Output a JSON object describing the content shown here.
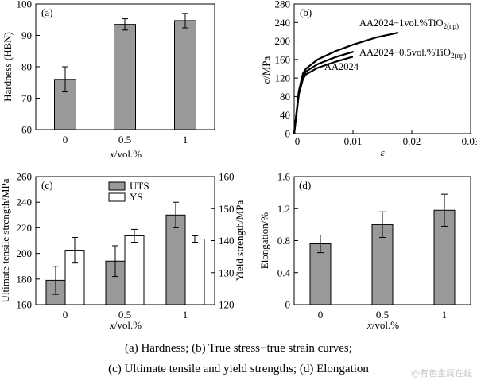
{
  "chart_data": [
    {
      "panel": "(a)",
      "type": "bar",
      "categories": [
        "0",
        "0.5",
        "1"
      ],
      "values": [
        76,
        93.5,
        94.7
      ],
      "errors": [
        4,
        1.8,
        2.3
      ],
      "ylabel": "Hardness (HBN)",
      "xlabel": "x/vol.%",
      "ylim": [
        60,
        100
      ],
      "yticks": [
        60,
        70,
        80,
        90,
        100
      ],
      "bar_color": "#999999",
      "grid": false
    },
    {
      "panel": "(b)",
      "type": "line",
      "xlabel": "ε",
      "ylabel": "σ/MPa",
      "xlim": [
        0,
        0.03
      ],
      "ylim": [
        0,
        280
      ],
      "xticks": [
        0,
        0.01,
        0.02,
        0.03
      ],
      "xtick_labels": [
        "0",
        "0.01",
        "0.02",
        "0.03"
      ],
      "yticks": [
        0,
        40,
        80,
        120,
        160,
        200,
        240,
        280
      ],
      "series": [
        {
          "name": "AA2024",
          "x": [
            0,
            0.0008,
            0.0015,
            0.002,
            0.004,
            0.007,
            0.01
          ],
          "y": [
            0,
            85,
            118,
            128,
            142,
            155,
            166
          ]
        },
        {
          "name": "AA2024−0.5vol.%TiO2(np)",
          "x": [
            0,
            0.0008,
            0.0015,
            0.002,
            0.004,
            0.007,
            0.0101
          ],
          "y": [
            0,
            88,
            123,
            134,
            150,
            165,
            177
          ]
        },
        {
          "name": "AA2024−1vol.%TiO2(np)",
          "x": [
            0,
            0.0008,
            0.0015,
            0.002,
            0.004,
            0.007,
            0.01,
            0.014,
            0.0177
          ],
          "y": [
            0,
            92,
            130,
            140,
            160,
            178,
            192,
            208,
            218
          ]
        }
      ],
      "annotations": [
        {
          "text": "AA2024−1vol.%TiO",
          "sub": "2(np)"
        },
        {
          "text": "AA2024−0.5vol.%TiO",
          "sub": "2(np)"
        },
        {
          "text": "AA2024",
          "sub": ""
        }
      ],
      "grid": false
    },
    {
      "panel": "(c)",
      "type": "bar",
      "categories": [
        "0",
        "0.5",
        "1"
      ],
      "series": [
        {
          "name": "UTS",
          "axis": "left",
          "values": [
            179,
            194,
            230
          ],
          "errors": [
            11,
            12,
            10
          ],
          "color": "#999999"
        },
        {
          "name": "YS",
          "axis": "right",
          "values": [
            137,
            141.5,
            140.5
          ],
          "errors": [
            4,
            2,
            1
          ],
          "color": "#ffffff"
        }
      ],
      "xlabel": "x/vol.%",
      "ylabel": "Ultimate tensile strength/MPa",
      "ylabel_right": "Yield strength/MPa",
      "ylim": [
        160,
        260
      ],
      "ylim_right": [
        120,
        160
      ],
      "yticks": [
        160,
        180,
        200,
        220,
        240,
        260
      ],
      "yticks_right": [
        120,
        130,
        140,
        150,
        160
      ],
      "legend": "top-left",
      "grid": false
    },
    {
      "panel": "(d)",
      "type": "bar",
      "categories": [
        "0",
        "0.5",
        "1"
      ],
      "values": [
        0.76,
        1.0,
        1.18
      ],
      "errors": [
        0.11,
        0.16,
        0.2
      ],
      "xlabel": "x/vol.%",
      "ylabel": "Elongation/%",
      "ylim": [
        0,
        1.6
      ],
      "yticks": [
        0,
        0.4,
        0.8,
        1.2,
        1.6
      ],
      "ytick_labels": [
        "0",
        "0.4",
        "0.8",
        "1.2",
        "1.6"
      ],
      "bar_color": "#999999",
      "grid": false
    }
  ],
  "captions": {
    "line1": "(a) Hardness; (b) True stress−true strain curves;",
    "line2": "(c) Ultimate tensile and yield strengths; (d) Elongation"
  },
  "watermark": "@有色金属在线"
}
